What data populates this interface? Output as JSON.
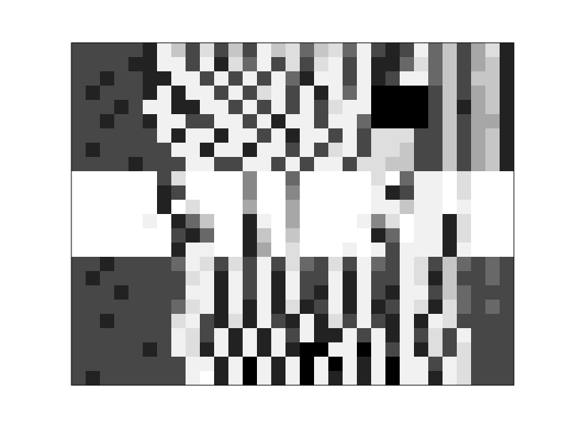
{
  "chart_data": {
    "type": "heatmap",
    "tick_labels": false,
    "zlim": [
      0,
      9
    ],
    "cells": [
      [
        2,
        2,
        2,
        2,
        2,
        1,
        8,
        6,
        2,
        7,
        2,
        6,
        2,
        8,
        6,
        7,
        3,
        6,
        7,
        3,
        8,
        2,
        1,
        2,
        8,
        3,
        6,
        2,
        5,
        7,
        1
      ],
      [
        2,
        2,
        2,
        2,
        1,
        1,
        8,
        8,
        2,
        8,
        1,
        7,
        3,
        8,
        2,
        7,
        2,
        7,
        8,
        2,
        8,
        1,
        1,
        3,
        7,
        3,
        6,
        2,
        5,
        6,
        1
      ],
      [
        2,
        2,
        1,
        2,
        2,
        1,
        1,
        8,
        8,
        2,
        8,
        2,
        8,
        2,
        8,
        3,
        1,
        8,
        8,
        2,
        8,
        1,
        2,
        8,
        8,
        3,
        6,
        2,
        6,
        6,
        1
      ],
      [
        2,
        1,
        2,
        2,
        2,
        1,
        8,
        1,
        8,
        8,
        2,
        8,
        2,
        7,
        8,
        2,
        8,
        1,
        8,
        3,
        8,
        0,
        0,
        0,
        0,
        2,
        6,
        2,
        5,
        6,
        1
      ],
      [
        2,
        2,
        2,
        1,
        2,
        8,
        8,
        1,
        1,
        8,
        8,
        2,
        8,
        2,
        8,
        2,
        8,
        2,
        7,
        8,
        8,
        0,
        0,
        0,
        0,
        2,
        6,
        1,
        5,
        6,
        1
      ],
      [
        2,
        2,
        1,
        2,
        2,
        1,
        8,
        8,
        2,
        2,
        8,
        8,
        2,
        8,
        1,
        8,
        8,
        2,
        8,
        8,
        3,
        0,
        0,
        0,
        0,
        2,
        6,
        2,
        5,
        5,
        1
      ],
      [
        2,
        2,
        2,
        2,
        2,
        2,
        8,
        1,
        8,
        8,
        1,
        8,
        8,
        2,
        8,
        1,
        8,
        8,
        2,
        8,
        2,
        7,
        7,
        7,
        2,
        2,
        6,
        2,
        5,
        6,
        1
      ],
      [
        2,
        1,
        2,
        2,
        2,
        2,
        2,
        8,
        8,
        1,
        8,
        8,
        1,
        8,
        8,
        2,
        8,
        2,
        7,
        8,
        2,
        7,
        7,
        6,
        2,
        2,
        6,
        2,
        5,
        6,
        1
      ],
      [
        2,
        2,
        2,
        2,
        1,
        2,
        2,
        2,
        8,
        8,
        2,
        2,
        8,
        8,
        2,
        8,
        2,
        8,
        8,
        2,
        7,
        7,
        6,
        6,
        2,
        2,
        6,
        2,
        5,
        6,
        1
      ],
      [
        9,
        9,
        9,
        9,
        9,
        9,
        2,
        7,
        9,
        9,
        9,
        9,
        4,
        9,
        9,
        3,
        9,
        9,
        9,
        9,
        9,
        7,
        9,
        3,
        8,
        8,
        9,
        7,
        9,
        9,
        9
      ],
      [
        9,
        9,
        9,
        9,
        9,
        9,
        1,
        2,
        9,
        9,
        9,
        9,
        4,
        9,
        9,
        4,
        9,
        9,
        9,
        9,
        9,
        8,
        1,
        2,
        8,
        8,
        9,
        7,
        9,
        9,
        9
      ],
      [
        9,
        9,
        9,
        9,
        9,
        9,
        1,
        9,
        7,
        9,
        9,
        9,
        5,
        9,
        9,
        5,
        9,
        9,
        9,
        9,
        9,
        8,
        8,
        6,
        8,
        8,
        9,
        8,
        9,
        9,
        9
      ],
      [
        9,
        9,
        9,
        9,
        9,
        8,
        9,
        1,
        3,
        6,
        9,
        9,
        1,
        8,
        9,
        5,
        9,
        9,
        9,
        9,
        8,
        4,
        7,
        9,
        8,
        8,
        1,
        7,
        9,
        9,
        9
      ],
      [
        9,
        9,
        9,
        9,
        9,
        9,
        9,
        2,
        1,
        3,
        9,
        9,
        1,
        6,
        9,
        6,
        9,
        9,
        9,
        9,
        9,
        1,
        3,
        9,
        8,
        8,
        1,
        7,
        9,
        9,
        9
      ],
      [
        9,
        9,
        9,
        9,
        9,
        9,
        9,
        1,
        8,
        8,
        9,
        9,
        1,
        5,
        9,
        7,
        9,
        9,
        9,
        8,
        9,
        8,
        2,
        8,
        8,
        8,
        1,
        8,
        9,
        9,
        9
      ],
      [
        2,
        2,
        1,
        2,
        2,
        2,
        2,
        3,
        8,
        7,
        2,
        7,
        2,
        8,
        2,
        7,
        3,
        2,
        7,
        2,
        8,
        3,
        2,
        8,
        7,
        2,
        6,
        3,
        2,
        3,
        2
      ],
      [
        2,
        1,
        2,
        2,
        2,
        2,
        2,
        2,
        7,
        8,
        1,
        8,
        2,
        8,
        1,
        8,
        2,
        2,
        8,
        1,
        8,
        2,
        2,
        8,
        7,
        1,
        6,
        2,
        2,
        3,
        2
      ],
      [
        2,
        2,
        2,
        1,
        2,
        2,
        2,
        2,
        8,
        8,
        1,
        8,
        2,
        8,
        1,
        8,
        2,
        1,
        8,
        1,
        8,
        2,
        1,
        8,
        8,
        2,
        6,
        3,
        2,
        2,
        2
      ],
      [
        2,
        2,
        2,
        2,
        2,
        2,
        2,
        3,
        7,
        8,
        1,
        8,
        1,
        8,
        1,
        7,
        1,
        2,
        8,
        1,
        8,
        1,
        2,
        8,
        7,
        1,
        7,
        3,
        2,
        3,
        2
      ],
      [
        2,
        2,
        1,
        2,
        2,
        2,
        2,
        7,
        8,
        2,
        1,
        7,
        1,
        8,
        2,
        1,
        8,
        1,
        7,
        2,
        8,
        2,
        1,
        8,
        1,
        8,
        7,
        2,
        2,
        2,
        2
      ],
      [
        2,
        2,
        2,
        2,
        2,
        2,
        2,
        8,
        7,
        2,
        8,
        1,
        8,
        1,
        8,
        2,
        8,
        1,
        1,
        8,
        2,
        8,
        1,
        8,
        2,
        7,
        2,
        8,
        2,
        2,
        2
      ],
      [
        2,
        2,
        2,
        2,
        2,
        1,
        2,
        8,
        7,
        1,
        8,
        1,
        8,
        1,
        8,
        1,
        0,
        0,
        8,
        8,
        0,
        8,
        2,
        8,
        1,
        7,
        2,
        7,
        2,
        2,
        2
      ],
      [
        2,
        2,
        2,
        2,
        2,
        2,
        2,
        2,
        8,
        8,
        1,
        8,
        0,
        8,
        1,
        8,
        0,
        8,
        0,
        8,
        1,
        8,
        0,
        8,
        8,
        2,
        8,
        7,
        2,
        2,
        2
      ],
      [
        2,
        1,
        2,
        2,
        2,
        2,
        2,
        2,
        8,
        9,
        1,
        8,
        0,
        8,
        1,
        8,
        0,
        8,
        1,
        8,
        1,
        8,
        0,
        8,
        8,
        1,
        8,
        7,
        2,
        2,
        2
      ]
    ]
  }
}
